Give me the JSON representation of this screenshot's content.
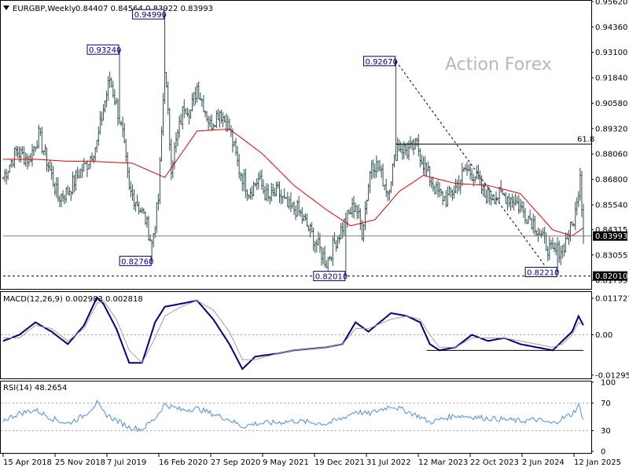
{
  "header": {
    "symbol": "EURGBP,Weekly",
    "ohlc": "0.84407 0.84564 0.83922 0.83993",
    "menu_icon": "triangle-down-icon"
  },
  "watermark": "Action Forex",
  "colors": {
    "bars": "#2f4f4f",
    "ma": "#e00000",
    "macd": "#000080",
    "signal": "#a0a0a0",
    "rsi": "#4a90e2",
    "label_border": "#000080",
    "guide": "#000000"
  },
  "chart_data": [
    {
      "type": "ohlc-bar",
      "pane": "price",
      "title": "EURGBP,Weekly",
      "ylim": [
        0.8145,
        0.9562
      ],
      "yticks": [
        "0.95620",
        "0.94360",
        "0.93100",
        "0.91840",
        "0.90580",
        "0.89320",
        "0.88060",
        "0.86800",
        "0.85540",
        "0.84315",
        "0.83055",
        "0.81795"
      ],
      "yticks_values": [
        0.9562,
        0.9436,
        0.931,
        0.9184,
        0.9058,
        0.8932,
        0.8806,
        0.868,
        0.8554,
        0.84315,
        0.83055,
        0.81795
      ],
      "xticks": [
        "15 Apr 2018",
        "25 Nov 2018",
        "7 Jul 2019",
        "16 Feb 2020",
        "27 Sep 2020",
        "9 May 2021",
        "19 Dec 2021",
        "31 Jul 2022",
        "12 Mar 2023",
        "22 Oct 2023",
        "2 Jun 2024",
        "12 Jan 2025"
      ],
      "bar_count": 360,
      "close_anchors": [
        [
          0,
          0.869
        ],
        [
          8,
          0.882
        ],
        [
          16,
          0.878
        ],
        [
          22,
          0.89
        ],
        [
          28,
          0.875
        ],
        [
          34,
          0.859
        ],
        [
          40,
          0.862
        ],
        [
          46,
          0.87
        ],
        [
          52,
          0.876
        ],
        [
          58,
          0.886
        ],
        [
          62,
          0.903
        ],
        [
          66,
          0.918
        ],
        [
          70,
          0.905
        ],
        [
          74,
          0.89
        ],
        [
          78,
          0.862
        ],
        [
          82,
          0.858
        ],
        [
          88,
          0.848
        ],
        [
          92,
          0.836
        ],
        [
          96,
          0.858
        ],
        [
          100,
          0.924
        ],
        [
          104,
          0.875
        ],
        [
          108,
          0.89
        ],
        [
          112,
          0.905
        ],
        [
          116,
          0.902
        ],
        [
          120,
          0.914
        ],
        [
          124,
          0.905
        ],
        [
          128,
          0.895
        ],
        [
          134,
          0.902
        ],
        [
          140,
          0.893
        ],
        [
          146,
          0.873
        ],
        [
          152,
          0.862
        ],
        [
          158,
          0.868
        ],
        [
          164,
          0.858
        ],
        [
          170,
          0.862
        ],
        [
          176,
          0.854
        ],
        [
          182,
          0.853
        ],
        [
          188,
          0.845
        ],
        [
          194,
          0.836
        ],
        [
          200,
          0.827
        ],
        [
          206,
          0.838
        ],
        [
          212,
          0.848
        ],
        [
          218,
          0.856
        ],
        [
          222,
          0.842
        ],
        [
          228,
          0.877
        ],
        [
          232,
          0.874
        ],
        [
          238,
          0.862
        ],
        [
          244,
          0.885
        ],
        [
          250,
          0.882
        ],
        [
          256,
          0.885
        ],
        [
          262,
          0.872
        ],
        [
          268,
          0.862
        ],
        [
          274,
          0.858
        ],
        [
          280,
          0.864
        ],
        [
          286,
          0.873
        ],
        [
          292,
          0.87
        ],
        [
          298,
          0.86
        ],
        [
          304,
          0.86
        ],
        [
          310,
          0.86
        ],
        [
          316,
          0.858
        ],
        [
          322,
          0.852
        ],
        [
          328,
          0.847
        ],
        [
          334,
          0.838
        ],
        [
          340,
          0.831
        ],
        [
          346,
          0.834
        ],
        [
          352,
          0.845
        ],
        [
          355,
          0.855
        ],
        [
          357,
          0.872
        ],
        [
          359,
          0.84
        ]
      ],
      "moving_average_anchors": [
        [
          0,
          0.878
        ],
        [
          20,
          0.878
        ],
        [
          40,
          0.877
        ],
        [
          55,
          0.877
        ],
        [
          80,
          0.876
        ],
        [
          100,
          0.869
        ],
        [
          120,
          0.892
        ],
        [
          140,
          0.893
        ],
        [
          160,
          0.881
        ],
        [
          180,
          0.865
        ],
        [
          200,
          0.853
        ],
        [
          215,
          0.845
        ],
        [
          230,
          0.848
        ],
        [
          245,
          0.862
        ],
        [
          260,
          0.87
        ],
        [
          280,
          0.866
        ],
        [
          300,
          0.865
        ],
        [
          320,
          0.861
        ],
        [
          340,
          0.843
        ],
        [
          352,
          0.84
        ],
        [
          359,
          0.844
        ]
      ],
      "last_price": "0.83993",
      "last_price_value": 0.83993,
      "level_box": "0.82010",
      "level_box_value": 0.8201,
      "fib_label": "61.8",
      "fib_level": 0.8855,
      "fib_start_index": 243,
      "trendline": {
        "from": [
          243,
          0.9267
        ],
        "to": [
          338,
          0.8221
        ]
      },
      "annotations": [
        {
          "label": "0.93240",
          "value": 0.9324,
          "bar": 72,
          "side": "left"
        },
        {
          "label": "0.94990",
          "value": 0.9499,
          "bar": 100,
          "side": "left"
        },
        {
          "label": "0.82760",
          "value": 0.8276,
          "bar": 92,
          "side": "left"
        },
        {
          "label": "0.82010",
          "value": 0.8201,
          "bar": 212,
          "side": "left"
        },
        {
          "label": "0.92670",
          "value": 0.9267,
          "bar": 243,
          "side": "left"
        },
        {
          "label": "0.82210",
          "value": 0.8221,
          "bar": 343,
          "side": "left"
        }
      ]
    },
    {
      "type": "line",
      "pane": "macd",
      "title": "MACD(12,26,9) 0.002983 0.002818",
      "ylim": [
        -0.0135,
        0.0135
      ],
      "yticks": [
        "0.011727",
        "0.00",
        "-0.012951"
      ],
      "yticks_values": [
        0.011727,
        0.0,
        -0.012951
      ],
      "series": [
        {
          "name": "MACD",
          "anchors": [
            [
              0,
              -0.002
            ],
            [
              10,
              0.0
            ],
            [
              20,
              0.004
            ],
            [
              30,
              0.001
            ],
            [
              40,
              -0.003
            ],
            [
              50,
              0.003
            ],
            [
              58,
              0.012
            ],
            [
              62,
              0.01
            ],
            [
              70,
              0.002
            ],
            [
              78,
              -0.009
            ],
            [
              86,
              -0.009
            ],
            [
              94,
              0.004
            ],
            [
              100,
              0.009
            ],
            [
              110,
              0.01
            ],
            [
              120,
              0.011
            ],
            [
              130,
              0.005
            ],
            [
              140,
              -0.003
            ],
            [
              148,
              -0.011
            ],
            [
              156,
              -0.007
            ],
            [
              170,
              -0.006
            ],
            [
              180,
              -0.005
            ],
            [
              200,
              -0.004
            ],
            [
              210,
              -0.003
            ],
            [
              218,
              0.004
            ],
            [
              226,
              0.001
            ],
            [
              240,
              0.007
            ],
            [
              250,
              0.006
            ],
            [
              258,
              0.004
            ],
            [
              264,
              -0.003
            ],
            [
              270,
              -0.005
            ],
            [
              280,
              -0.004
            ],
            [
              290,
              0.0
            ],
            [
              300,
              -0.002
            ],
            [
              310,
              -0.001
            ],
            [
              320,
              -0.003
            ],
            [
              330,
              -0.004
            ],
            [
              340,
              -0.005
            ],
            [
              346,
              -0.002
            ],
            [
              352,
              0.001
            ],
            [
              356,
              0.006
            ],
            [
              359,
              0.003
            ]
          ]
        },
        {
          "name": "Signal",
          "anchors": [
            [
              0,
              -0.001
            ],
            [
              10,
              -0.001
            ],
            [
              20,
              0.003
            ],
            [
              30,
              0.002
            ],
            [
              40,
              -0.002
            ],
            [
              50,
              0.002
            ],
            [
              58,
              0.01
            ],
            [
              62,
              0.011
            ],
            [
              70,
              0.005
            ],
            [
              78,
              -0.005
            ],
            [
              86,
              -0.009
            ],
            [
              94,
              -0.001
            ],
            [
              100,
              0.006
            ],
            [
              110,
              0.009
            ],
            [
              120,
              0.011
            ],
            [
              130,
              0.008
            ],
            [
              140,
              0.001
            ],
            [
              148,
              -0.008
            ],
            [
              156,
              -0.008
            ],
            [
              170,
              -0.006
            ],
            [
              180,
              -0.005
            ],
            [
              200,
              -0.004
            ],
            [
              210,
              -0.003
            ],
            [
              218,
              0.002
            ],
            [
              226,
              0.002
            ],
            [
              240,
              0.005
            ],
            [
              250,
              0.006
            ],
            [
              258,
              0.005
            ],
            [
              264,
              0.0
            ],
            [
              270,
              -0.004
            ],
            [
              280,
              -0.004
            ],
            [
              290,
              -0.001
            ],
            [
              300,
              -0.001
            ],
            [
              310,
              -0.001
            ],
            [
              320,
              -0.002
            ],
            [
              330,
              -0.003
            ],
            [
              340,
              -0.004
            ],
            [
              346,
              -0.003
            ],
            [
              352,
              0.0
            ],
            [
              356,
              0.004
            ],
            [
              359,
              0.003
            ]
          ]
        }
      ],
      "support_line": {
        "from": [
          262,
          -0.005
        ],
        "to": [
          359,
          -0.005
        ]
      }
    },
    {
      "type": "line",
      "pane": "rsi",
      "title": "RSI(14) 48.2654",
      "ylim": [
        0,
        100
      ],
      "yticks": [
        "100",
        "70",
        "30",
        "0"
      ],
      "yticks_values": [
        100,
        70,
        30,
        0
      ],
      "levels": [
        70,
        30
      ],
      "series": [
        {
          "name": "RSI",
          "anchors": [
            [
              0,
              45
            ],
            [
              10,
              55
            ],
            [
              20,
              60
            ],
            [
              30,
              48
            ],
            [
              40,
              40
            ],
            [
              50,
              52
            ],
            [
              58,
              70
            ],
            [
              62,
              56
            ],
            [
              70,
              45
            ],
            [
              78,
              35
            ],
            [
              86,
              32
            ],
            [
              94,
              48
            ],
            [
              100,
              68
            ],
            [
              110,
              60
            ],
            [
              120,
              62
            ],
            [
              130,
              54
            ],
            [
              140,
              46
            ],
            [
              148,
              36
            ],
            [
              156,
              40
            ],
            [
              170,
              42
            ],
            [
              180,
              44
            ],
            [
              200,
              40
            ],
            [
              210,
              48
            ],
            [
              218,
              58
            ],
            [
              226,
              54
            ],
            [
              240,
              66
            ],
            [
              250,
              58
            ],
            [
              258,
              50
            ],
            [
              264,
              42
            ],
            [
              270,
              46
            ],
            [
              280,
              52
            ],
            [
              290,
              50
            ],
            [
              300,
              48
            ],
            [
              310,
              46
            ],
            [
              320,
              44
            ],
            [
              330,
              46
            ],
            [
              340,
              40
            ],
            [
              346,
              48
            ],
            [
              352,
              54
            ],
            [
              356,
              66
            ],
            [
              359,
              48
            ]
          ]
        }
      ]
    }
  ]
}
